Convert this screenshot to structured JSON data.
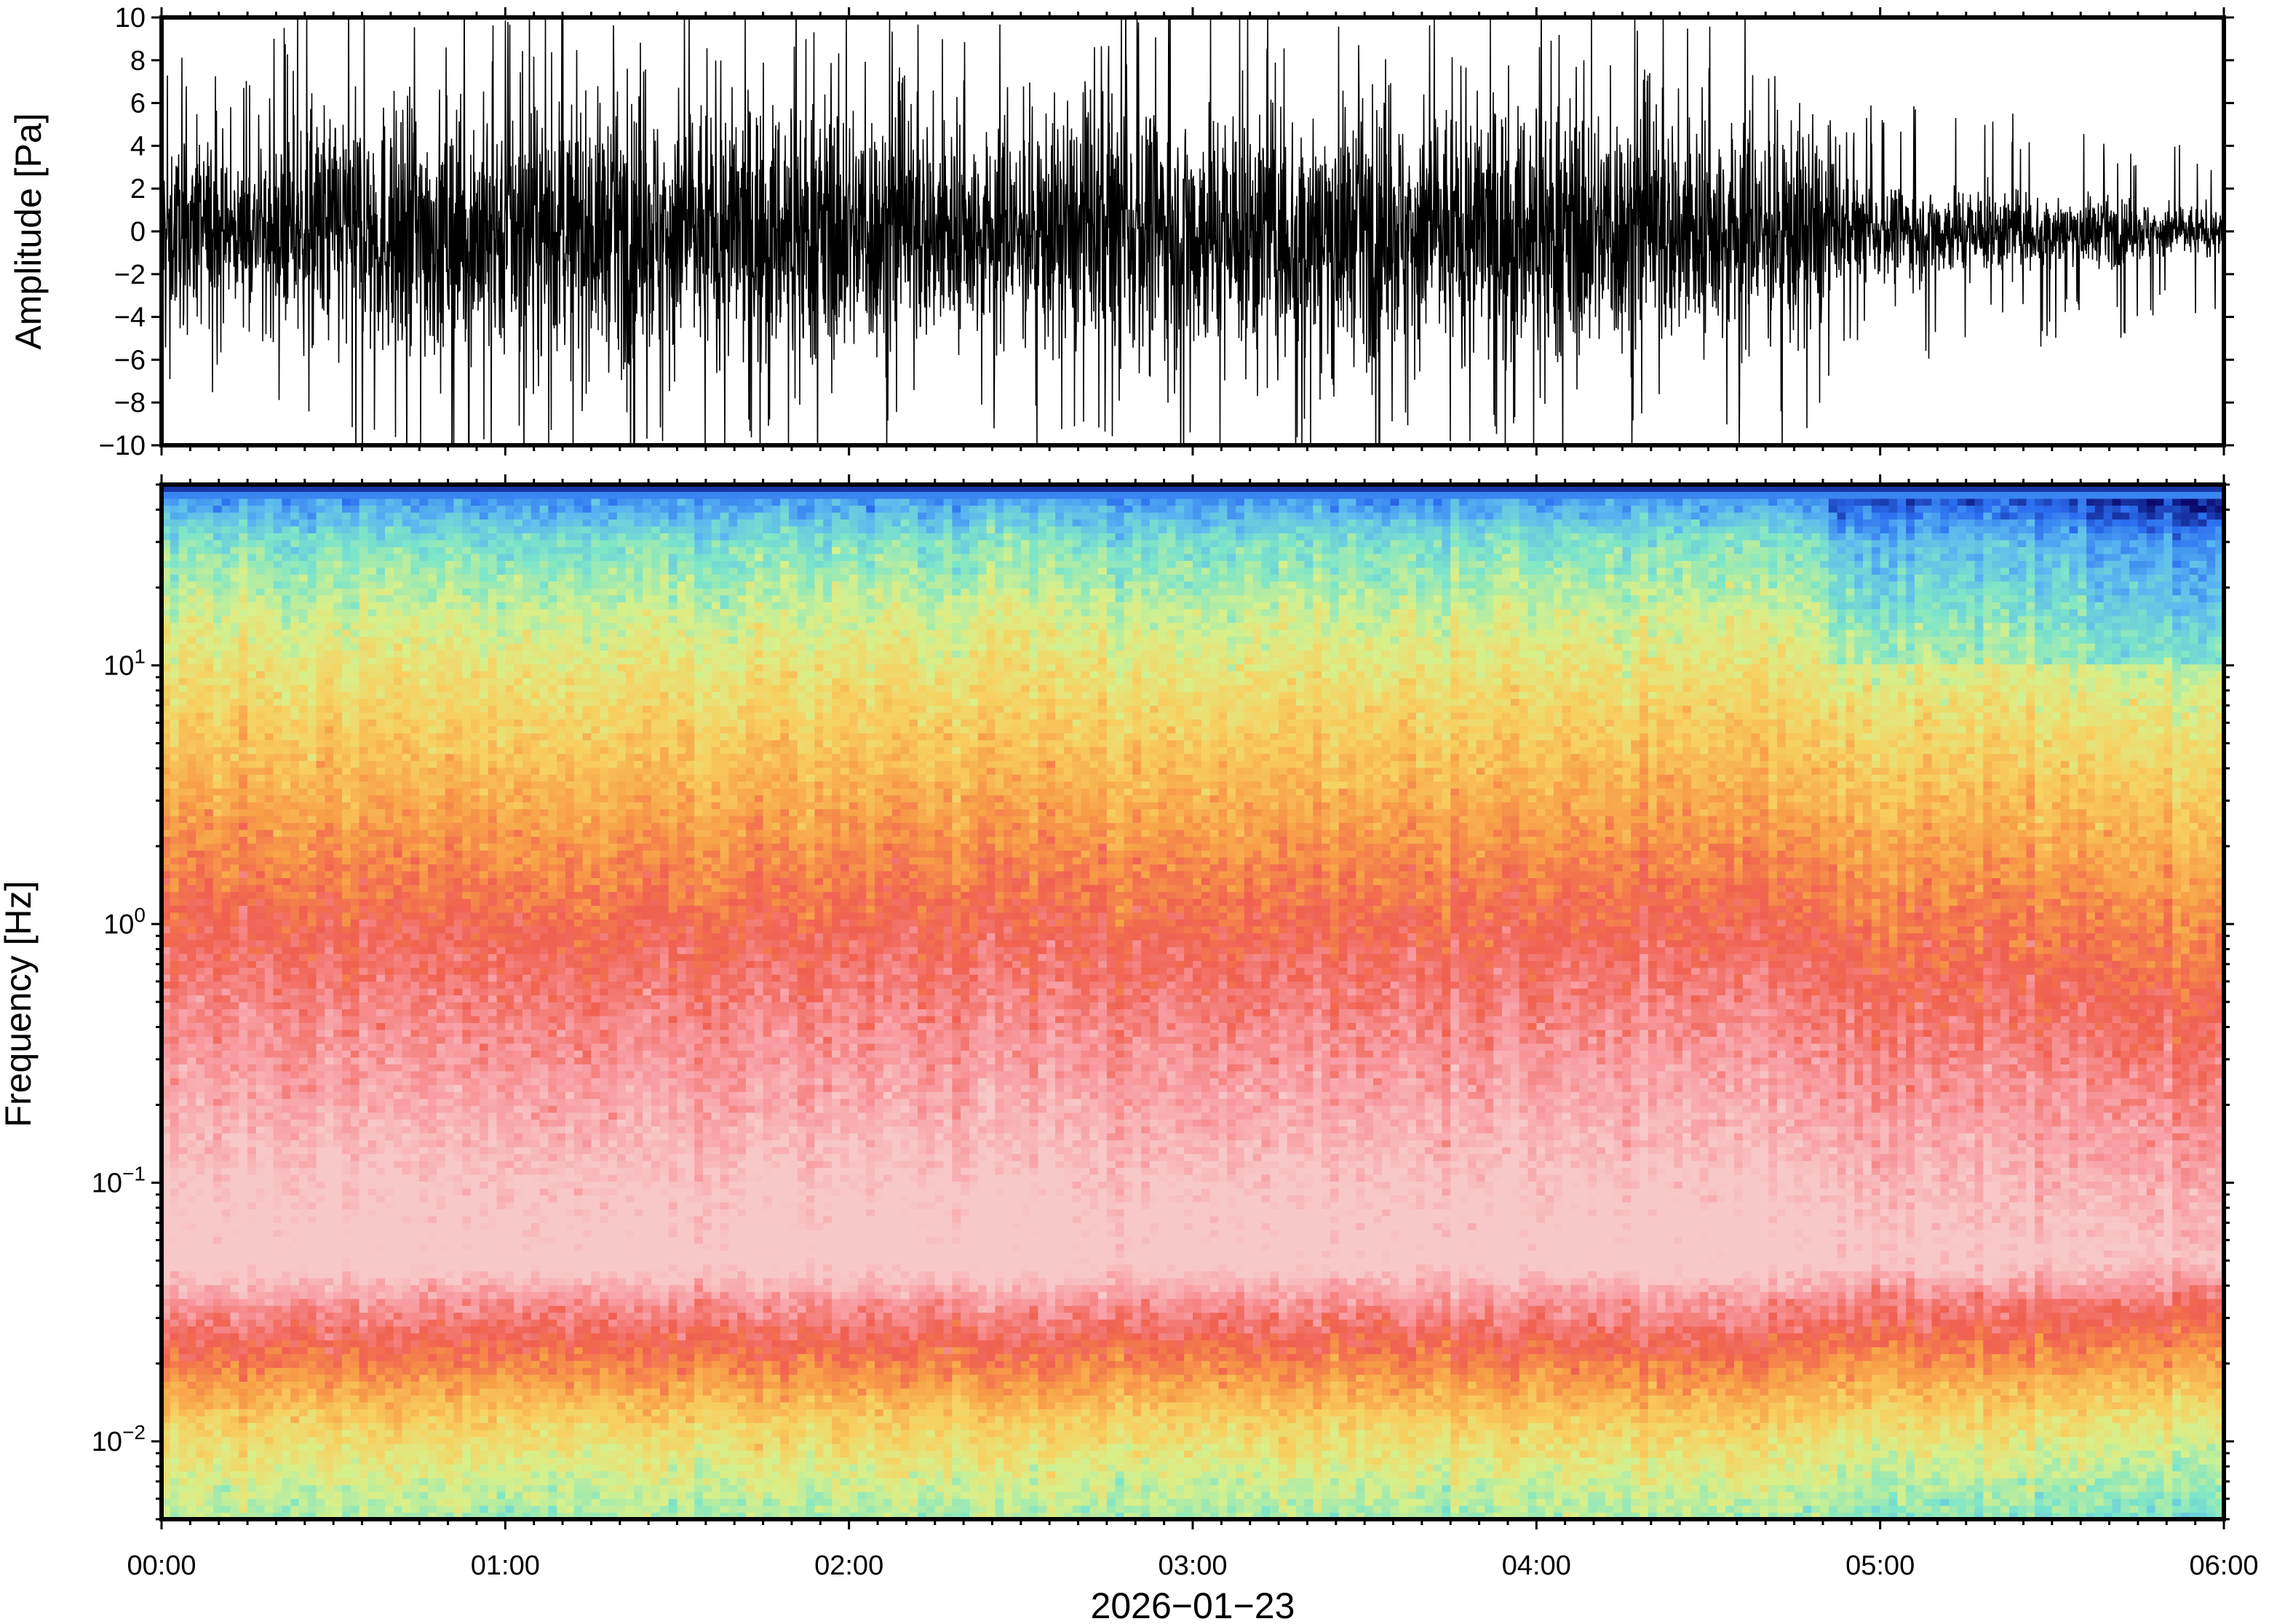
{
  "chart_data": [
    {
      "type": "line",
      "name": "waveform",
      "ylabel": "Amplitude [Pa]",
      "ylim": [
        -10,
        10
      ],
      "yticks": [
        "10",
        "8",
        "6",
        "4",
        "2",
        "0",
        "−2",
        "−4",
        "−6",
        "−8",
        "−10"
      ],
      "ytick_values": [
        10,
        8,
        6,
        4,
        2,
        0,
        -2,
        -4,
        -6,
        -8,
        -10
      ],
      "xlim": [
        "2026-01-23T00:00",
        "2026-01-23T06:00"
      ],
      "color": "#000000",
      "envelope_hours": [
        0,
        0.15,
        0.2,
        0.5,
        1.0,
        1.5,
        2.0,
        2.4,
        2.6,
        3.0,
        3.5,
        4.0,
        4.5,
        4.8,
        4.9,
        5.2,
        5.5,
        5.8,
        6.0
      ],
      "envelope_amplitude": [
        4.5,
        5,
        3,
        7,
        6.5,
        7,
        7,
        5.5,
        6.5,
        7,
        6.5,
        7,
        6,
        6,
        2.5,
        2.5,
        2.0,
        1.6,
        1.2
      ],
      "peak_amplitude": [
        7,
        8,
        5,
        11,
        10,
        10,
        10,
        8,
        9,
        10,
        9,
        10,
        9,
        9,
        5,
        5,
        4.5,
        4,
        3.5
      ]
    },
    {
      "type": "heatmap",
      "name": "spectrogram",
      "ylabel": "Frequency [Hz]",
      "xlabel": "2026−01−23",
      "y_scale": "log",
      "ylim_hz": [
        0.005,
        50
      ],
      "yticks": [
        {
          "base": "10",
          "exp": "1",
          "value": 10
        },
        {
          "base": "10",
          "exp": "0",
          "value": 1
        },
        {
          "base": "10",
          "exp": "−1",
          "value": 0.1
        },
        {
          "base": "10",
          "exp": "−2",
          "value": 0.01
        }
      ],
      "xticks": [
        "00:00",
        "01:00",
        "02:00",
        "03:00",
        "04:00",
        "05:00",
        "06:00"
      ],
      "xtick_hours": [
        0,
        1,
        2,
        3,
        4,
        5,
        6
      ],
      "colormap": [
        "#0a0a6e",
        "#2b6ef0",
        "#5ab8f0",
        "#7ee6c8",
        "#d8f08a",
        "#f8d060",
        "#f8a048",
        "#f06050",
        "#f89aa0",
        "#f8c8c8"
      ],
      "level_frequencies_hz": [
        50,
        45,
        30,
        15,
        6,
        2.5,
        1,
        0.3,
        0.1,
        0.05,
        0.035,
        0.02,
        0.012,
        0.007,
        0.005
      ],
      "level_values": [
        0,
        1.5,
        3,
        4,
        5,
        6,
        7,
        8,
        9,
        9.5,
        8,
        6.5,
        5,
        4,
        3.5
      ]
    }
  ]
}
